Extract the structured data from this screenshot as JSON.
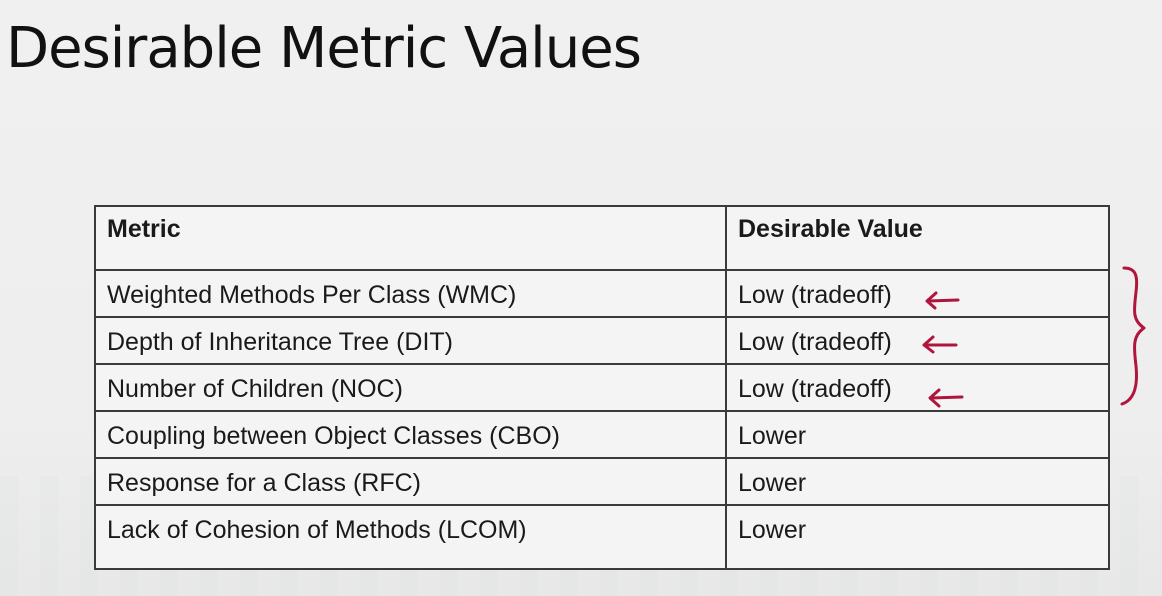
{
  "slide": {
    "title": "Desirable Metric Values"
  },
  "table": {
    "headers": {
      "metric": "Metric",
      "value": "Desirable Value"
    },
    "rows": [
      {
        "metric": "Weighted Methods Per Class (WMC)",
        "value": "Low (tradeoff)",
        "annotated": true
      },
      {
        "metric": "Depth of Inheritance Tree (DIT)",
        "value": "Low (tradeoff)",
        "annotated": true
      },
      {
        "metric": "Number of Children (NOC)",
        "value": "Low (tradeoff)",
        "annotated": true
      },
      {
        "metric": "Coupling between Object Classes (CBO)",
        "value": "Lower",
        "annotated": false
      },
      {
        "metric": "Response for a Class (RFC)",
        "value": "Lower",
        "annotated": false
      },
      {
        "metric": "Lack of Cohesion of Methods (LCOM)",
        "value": "Lower",
        "annotated": false
      }
    ]
  },
  "annotations": {
    "ink_color": "#b0163c",
    "marks": [
      "arrow-left-icon",
      "arrow-left-icon",
      "arrow-left-icon",
      "curly-brace-icon"
    ]
  }
}
